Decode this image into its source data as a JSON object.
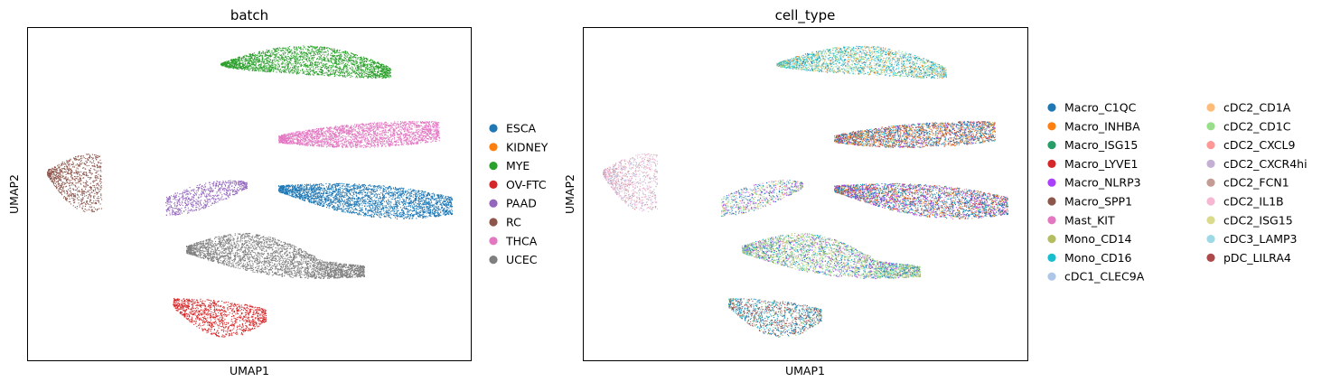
{
  "chart_data": [
    {
      "type": "scatter",
      "title": "batch",
      "xlabel": "UMAP1",
      "ylabel": "UMAP2",
      "grid": false,
      "ticks": false,
      "legend_position": "right",
      "series": [
        {
          "name": "ESCA",
          "color": "#1f77b4"
        },
        {
          "name": "KIDNEY",
          "color": "#ff7f0e"
        },
        {
          "name": "MYE",
          "color": "#2ca02c"
        },
        {
          "name": "OV-FTC",
          "color": "#d62728"
        },
        {
          "name": "PAAD",
          "color": "#9467bd"
        },
        {
          "name": "RC",
          "color": "#8c564b"
        },
        {
          "name": "THCA",
          "color": "#e377c2"
        },
        {
          "name": "UCEC",
          "color": "#7f7f7f"
        }
      ]
    },
    {
      "type": "scatter",
      "title": "cell_type",
      "xlabel": "UMAP1",
      "ylabel": "UMAP2",
      "grid": false,
      "ticks": false,
      "legend_position": "right",
      "legend_columns": 2,
      "series": [
        {
          "name": "Macro_C1QC",
          "color": "#1f77b4"
        },
        {
          "name": "Macro_INHBA",
          "color": "#ff7f0e"
        },
        {
          "name": "Macro_ISG15",
          "color": "#279e68"
        },
        {
          "name": "Macro_LYVE1",
          "color": "#d62728"
        },
        {
          "name": "Macro_NLRP3",
          "color": "#aa40fc"
        },
        {
          "name": "Macro_SPP1",
          "color": "#8c564b"
        },
        {
          "name": "Mast_KIT",
          "color": "#e377c2"
        },
        {
          "name": "Mono_CD14",
          "color": "#b5bd61"
        },
        {
          "name": "Mono_CD16",
          "color": "#17becf"
        },
        {
          "name": "cDC1_CLEC9A",
          "color": "#aec7e8"
        },
        {
          "name": "cDC2_CD1A",
          "color": "#ffbb78"
        },
        {
          "name": "cDC2_CD1C",
          "color": "#98df8a"
        },
        {
          "name": "cDC2_CXCL9",
          "color": "#ff9896"
        },
        {
          "name": "cDC2_CXCR4hi",
          "color": "#c5b0d5"
        },
        {
          "name": "cDC2_FCN1",
          "color": "#c49c94"
        },
        {
          "name": "cDC2_IL1B",
          "color": "#f7b6d2"
        },
        {
          "name": "cDC2_ISG15",
          "color": "#dbdb8d"
        },
        {
          "name": "cDC3_LAMP3",
          "color": "#9edae5"
        },
        {
          "name": "pDC_LILRA4",
          "color": "#ad494a"
        }
      ]
    }
  ]
}
